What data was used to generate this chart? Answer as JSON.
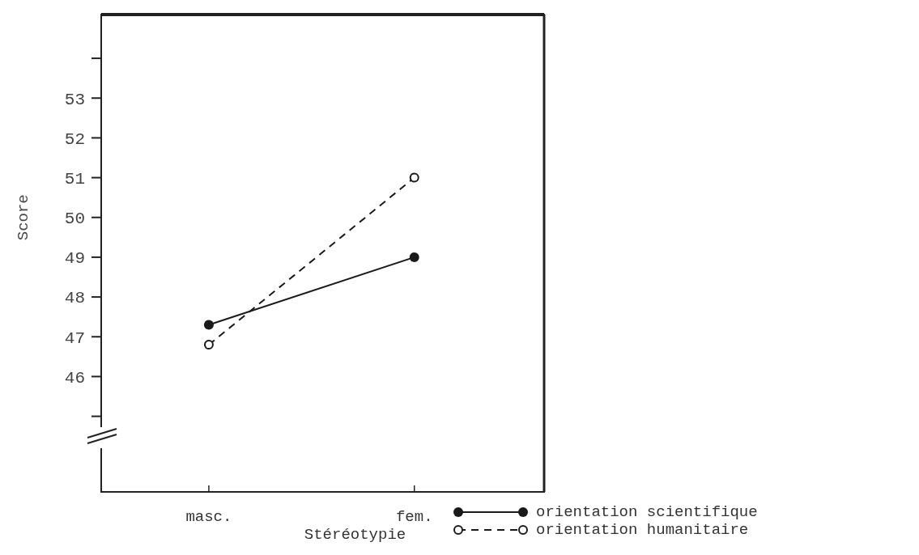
{
  "chart_data": {
    "type": "line",
    "xlabel": "Stéréotypie",
    "ylabel": "Score",
    "categories": [
      "masc.",
      "fem."
    ],
    "series": [
      {
        "name": "orientation scientifique",
        "color": "#1a1a1a",
        "values": [
          47.3,
          49.0
        ],
        "marker": "circle",
        "line_style": "solid"
      },
      {
        "name": "orientation humanitaire",
        "color": "#1a1a1a",
        "values": [
          46.8,
          51.0
        ],
        "marker": "open-circle",
        "line_style": "dashed"
      }
    ],
    "ylim": [
      43.1,
      55.1
    ],
    "yticks": [
      {
        "value": 45,
        "label": null
      },
      46,
      47,
      48,
      49,
      50,
      51,
      52,
      53,
      {
        "value": 54,
        "label": null
      }
    ],
    "grid": false,
    "legend": "bottom right"
  }
}
